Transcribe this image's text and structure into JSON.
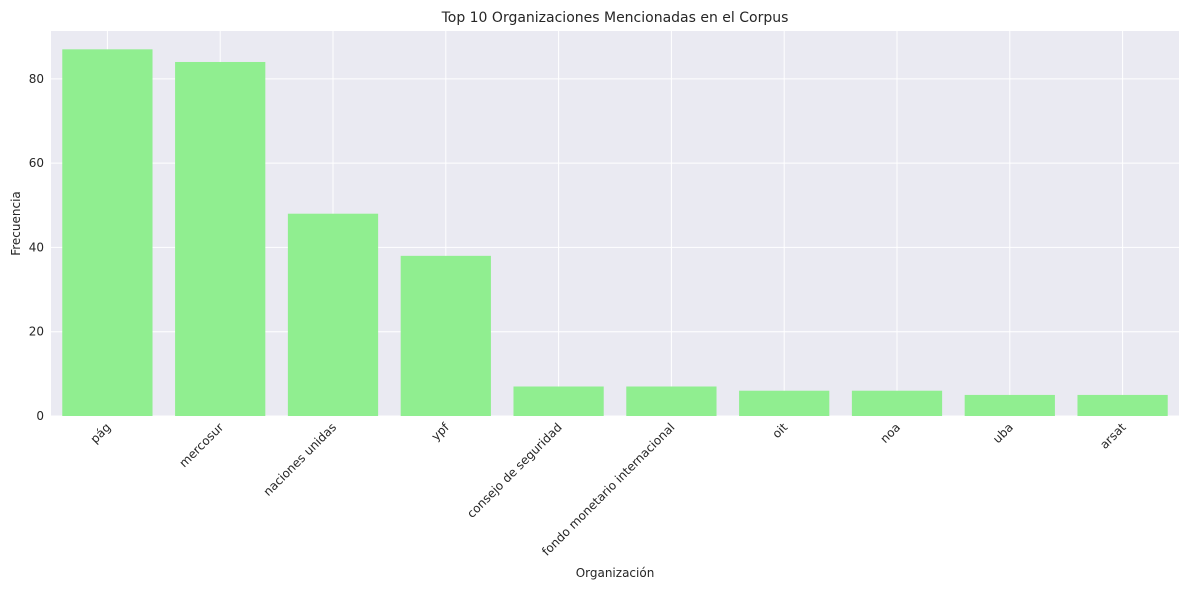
{
  "chart_data": {
    "type": "bar",
    "title": "Top 10 Organizaciones Mencionadas en el Corpus",
    "xlabel": "Organización",
    "ylabel": "Frecuencia",
    "categories": [
      "pág",
      "mercosur",
      "naciones unidas",
      "ypf",
      "consejo de seguridad",
      "fondo monetario internacional",
      "oit",
      "noa",
      "uba",
      "arsat"
    ],
    "values": [
      87,
      84,
      48,
      38,
      7,
      7,
      6,
      6,
      5,
      5
    ],
    "ylim": [
      0,
      91.35
    ],
    "yticks": [
      0,
      20,
      40,
      60,
      80
    ],
    "grid": true,
    "legend": "none",
    "colors": {
      "bar": "#90ee90",
      "plot_background": "#eaeaf2",
      "grid": "#ffffff",
      "text": "#262626"
    }
  }
}
